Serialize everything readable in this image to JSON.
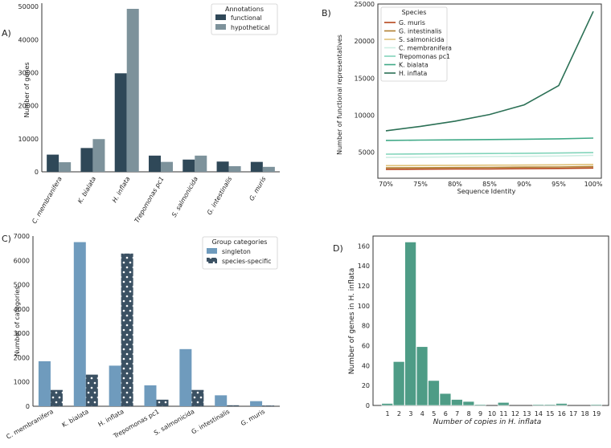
{
  "colors": {
    "functional": "#2f4858",
    "hypothetical": "#7d929b",
    "singleton": "#6f9bbd",
    "species_specific": "#3b5163",
    "histogram": "#4e9c86"
  },
  "chart_data": [
    {
      "id": "A",
      "panel_label": "A)",
      "type": "bar",
      "categories": [
        "C. membranifera",
        "K. bialata",
        "H. inflata",
        "Trepomonas pc1",
        "S. salmonicida",
        "G. intestinalis",
        "G. muris"
      ],
      "series": [
        {
          "name": "functional",
          "values": [
            5200,
            7200,
            29800,
            4900,
            3700,
            3100,
            3000
          ]
        },
        {
          "name": "hypothetical",
          "values": [
            2900,
            9900,
            49300,
            3000,
            4900,
            1700,
            1500
          ]
        }
      ],
      "ylabel": "Number of genes",
      "xlabel": "",
      "ylim": [
        0,
        51000
      ],
      "yticks": [
        0,
        10000,
        20000,
        30000,
        40000,
        50000
      ],
      "legend_title": "Annotations",
      "legend_position": "top-right"
    },
    {
      "id": "B",
      "panel_label": "B)",
      "type": "line",
      "x": [
        "70%",
        "75%",
        "80%",
        "85%",
        "90%",
        "95%",
        "100%"
      ],
      "series": [
        {
          "name": "G. muris",
          "color": "#b5451b",
          "values": [
            2700,
            2720,
            2740,
            2760,
            2790,
            2820,
            2880
          ]
        },
        {
          "name": "G. intestinalis",
          "color": "#b07f2f",
          "values": [
            2900,
            2920,
            2940,
            2960,
            2990,
            3020,
            3080
          ]
        },
        {
          "name": "S. salmonicida",
          "color": "#e0c279",
          "values": [
            3200,
            3220,
            3240,
            3260,
            3280,
            3310,
            3360
          ]
        },
        {
          "name": "C. membranifera",
          "color": "#cdeee3",
          "values": [
            4300,
            4340,
            4380,
            4420,
            4460,
            4500,
            4600
          ]
        },
        {
          "name": "Trepomonas pc1",
          "color": "#82d4ba",
          "values": [
            4750,
            4780,
            4810,
            4840,
            4870,
            4900,
            4960
          ]
        },
        {
          "name": "K. bialata",
          "color": "#40a987",
          "values": [
            6600,
            6640,
            6680,
            6720,
            6760,
            6820,
            6920
          ]
        },
        {
          "name": "H. inflata",
          "color": "#2b7055",
          "values": [
            7900,
            8500,
            9200,
            10100,
            11400,
            14000,
            24000
          ]
        }
      ],
      "ylabel": "Number of functional representatives",
      "xlabel": "Sequence Identity",
      "ylim": [
        1500,
        25000
      ],
      "yticks": [
        5000,
        10000,
        15000,
        20000,
        25000
      ],
      "legend_title": "Species",
      "legend_position": "top-left"
    },
    {
      "id": "C",
      "panel_label": "C)",
      "type": "bar",
      "categories": [
        "C. membranifera",
        "K. bialata",
        "H. inflata",
        "Trepomonas pc1",
        "S. salmonicida",
        "G. intestinalis",
        "G. muris"
      ],
      "series": [
        {
          "name": "singleton",
          "values": [
            1850,
            6750,
            1670,
            860,
            2350,
            450,
            210
          ]
        },
        {
          "name": "species-specific",
          "values": [
            670,
            1300,
            6280,
            270,
            670,
            40,
            30
          ]
        }
      ],
      "ylabel": "Number of categories",
      "xlabel": "",
      "ylim": [
        0,
        7000
      ],
      "yticks": [
        0,
        1000,
        2000,
        3000,
        4000,
        5000,
        6000,
        7000
      ],
      "legend_title": "Group categories",
      "legend_position": "top-right"
    },
    {
      "id": "D",
      "panel_label": "D)",
      "type": "bar",
      "categories": [
        "1",
        "2",
        "3",
        "4",
        "5",
        "6",
        "7",
        "8",
        "9",
        "10",
        "11",
        "12",
        "13",
        "14",
        "15",
        "16",
        "17",
        "18",
        "19"
      ],
      "values": [
        2,
        44,
        164,
        59,
        25,
        12,
        6,
        4,
        1,
        0,
        3,
        0,
        0,
        1,
        1,
        2,
        0,
        0,
        1
      ],
      "ylabel": "Number of genes in H. inflata",
      "xlabel": "Number of copies in H. inflata",
      "ylim": [
        0,
        170
      ],
      "yticks": [
        0,
        20,
        40,
        60,
        80,
        100,
        120,
        140,
        160
      ]
    }
  ]
}
